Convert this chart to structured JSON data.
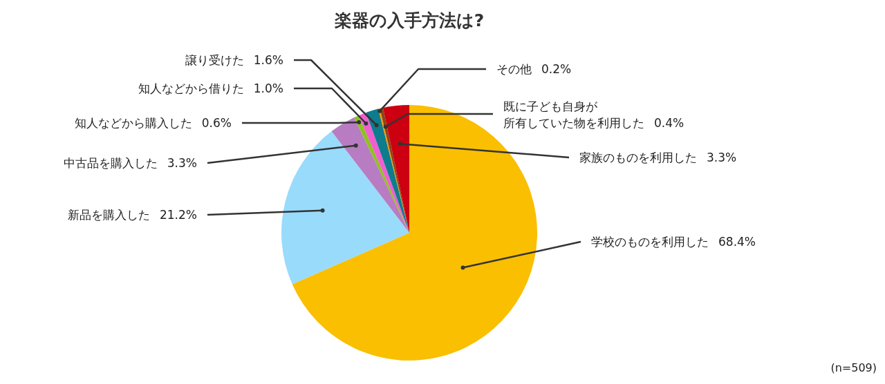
{
  "chart_data": {
    "type": "pie",
    "title": "楽器の入手方法は?",
    "categories": [
      "学校のものを利用した",
      "新品を購入した",
      "中古品を購入した",
      "知人などから購入した",
      "知人などから借りた",
      "譲り受けた",
      "その他",
      "既に子ども自身が所有していた物を利用した",
      "家族のものを利用した"
    ],
    "values": [
      68.4,
      21.2,
      3.3,
      0.6,
      1.0,
      1.6,
      0.2,
      0.4,
      3.3
    ],
    "colors": [
      "#f9bf00",
      "#99dbfb",
      "#b77cc1",
      "#8dc21f",
      "#f05fd0",
      "#0e7c8c",
      "#f39800",
      "#8b4513",
      "#cc0010"
    ],
    "value_labels": [
      "68.4%",
      "21.2%",
      "3.3%",
      "0.6%",
      "1.0%",
      "1.6%",
      "0.2%",
      "0.4%",
      "3.3%"
    ],
    "annotations": [
      "(n=509)"
    ]
  }
}
